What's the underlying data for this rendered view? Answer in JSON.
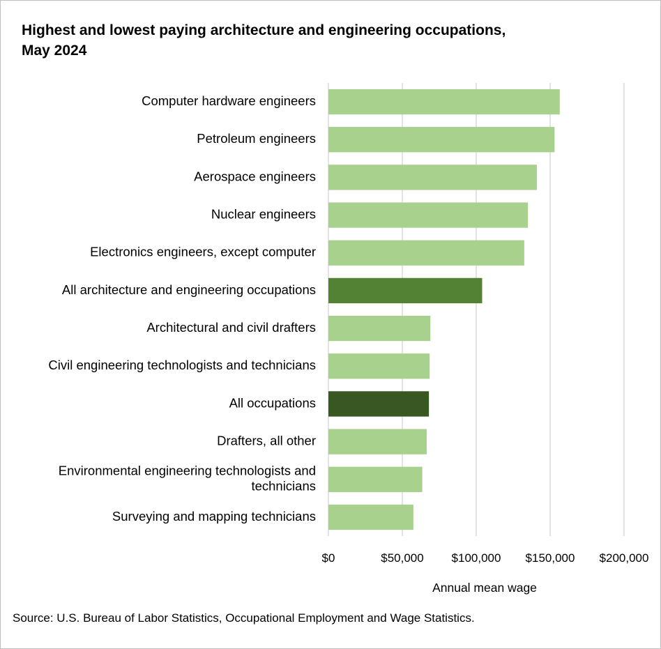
{
  "chart_data": {
    "type": "bar",
    "orientation": "horizontal",
    "title_lines": [
      "Highest and lowest paying architecture and engineering occupations,",
      "May 2024"
    ],
    "xlabel": "Annual mean wage",
    "ylabel": "",
    "xlim": [
      0,
      200000
    ],
    "xticks": [
      0,
      50000,
      100000,
      150000,
      200000
    ],
    "xtick_labels": [
      "$0",
      "$50,000",
      "$100,000",
      "$150,000",
      "$200,000"
    ],
    "grid": "vertical",
    "legend": "none",
    "categories": [
      [
        "Computer hardware engineers"
      ],
      [
        "Petroleum engineers"
      ],
      [
        "Aerospace engineers"
      ],
      [
        "Nuclear engineers"
      ],
      [
        "Electronics engineers, except computer"
      ],
      [
        "All architecture and engineering occupations"
      ],
      [
        "Architectural and civil drafters"
      ],
      [
        "Civil engineering technologists and technicians"
      ],
      [
        "All occupations"
      ],
      [
        "Drafters, all other"
      ],
      [
        "Environmental engineering technologists and",
        "technicians"
      ],
      [
        "Surveying and mapping technicians"
      ]
    ],
    "values": [
      156500,
      153000,
      141000,
      135000,
      132500,
      104000,
      69000,
      68500,
      68000,
      66500,
      63500,
      57500
    ],
    "bar_colors": [
      "#a9d18e",
      "#a9d18e",
      "#a9d18e",
      "#a9d18e",
      "#a9d18e",
      "#548235",
      "#a9d18e",
      "#a9d18e",
      "#385723",
      "#a9d18e",
      "#a9d18e",
      "#a9d18e"
    ]
  },
  "source": "Source: U.S. Bureau of Labor Statistics, Occupational Employment and Wage Statistics."
}
